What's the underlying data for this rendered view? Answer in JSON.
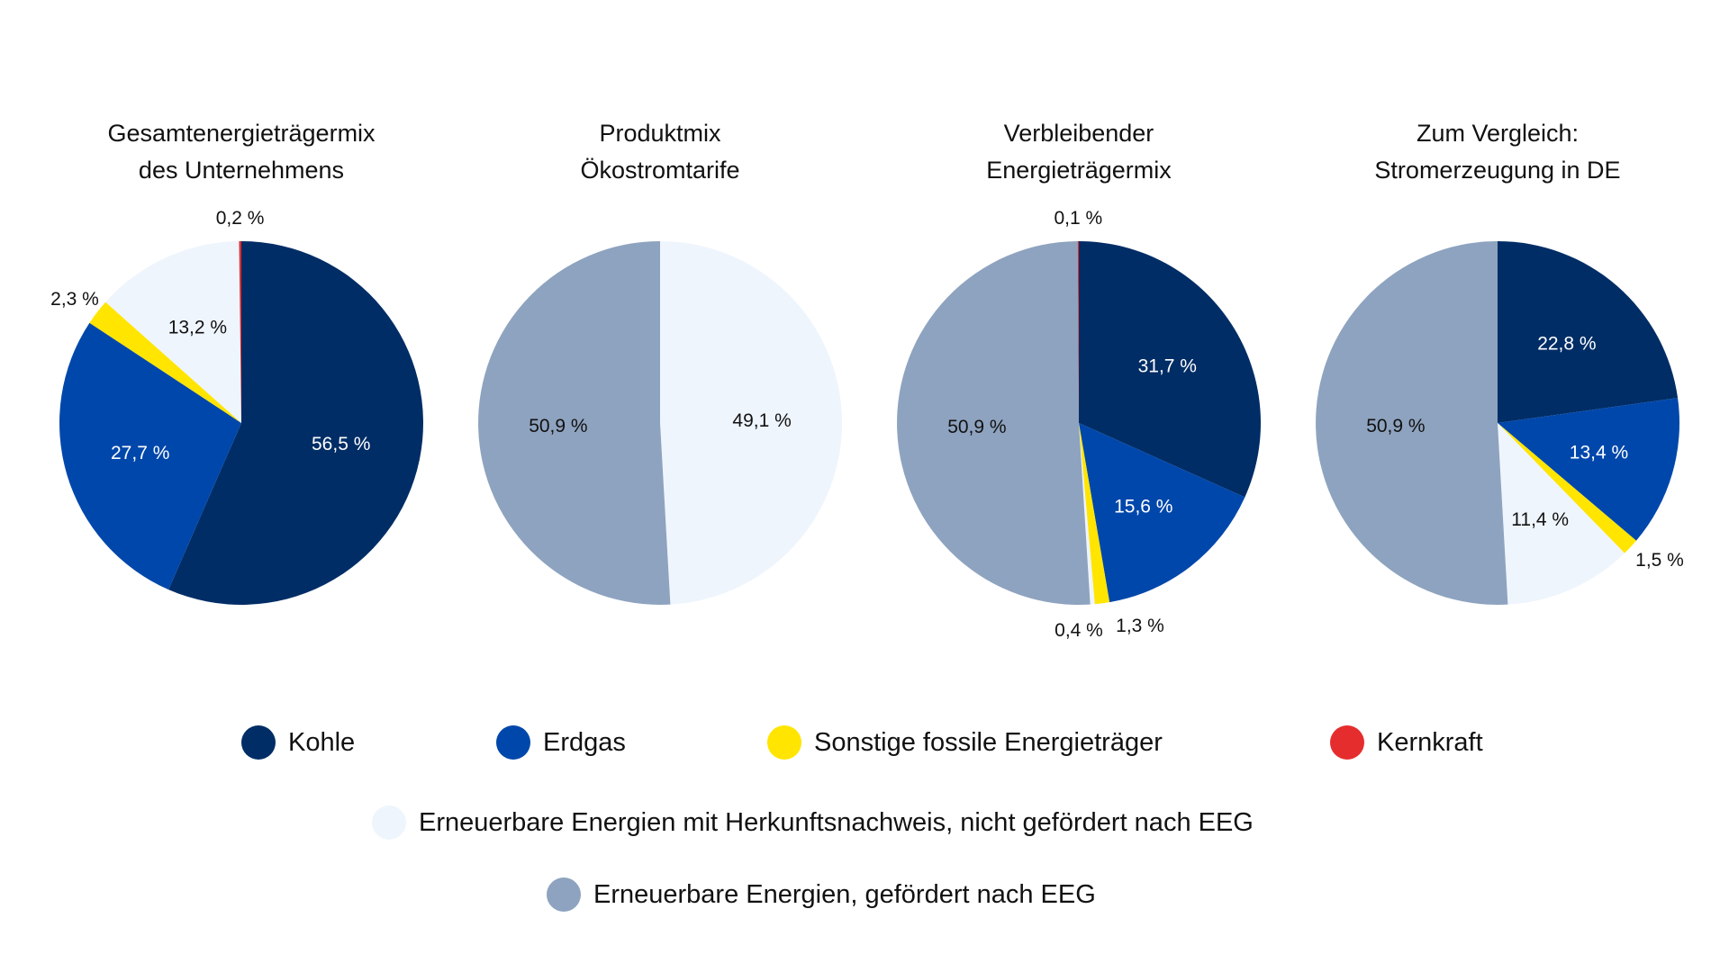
{
  "colors": {
    "Kohle": "#002D66",
    "Erdgas": "#0047AB",
    "Sonstige": "#FFE500",
    "Kernkraft": "#E52D2D",
    "Erneuerbar_HKN": "#EFF5FD",
    "Erneuerbar_EEG": "#8EA3BF"
  },
  "legend": {
    "kohle": "Kohle",
    "erdgas": "Erdgas",
    "sonstige": "Sonstige fossile Energieträger",
    "kernkraft": "Kernkraft",
    "erneuerbar_hkn": "Erneuerbare Energien mit Herkunftsnachweis, nicht gefördert nach EEG",
    "erneuerbar_eeg": "Erneuerbare Energien, gefördert nach EEG"
  },
  "chart_data": [
    {
      "type": "pie",
      "title": [
        "Gesamtenergieträgermix",
        "des Unternehmens"
      ],
      "slices": [
        {
          "category": "Kohle",
          "value": 56.5,
          "label": "56,5 %"
        },
        {
          "category": "Erdgas",
          "value": 27.7,
          "label": "27,7 %"
        },
        {
          "category": "Sonstige",
          "value": 2.3,
          "label": "2,3 %"
        },
        {
          "category": "Erneuerbar_HKN",
          "value": 13.2,
          "label": "13,2 %"
        },
        {
          "category": "Kernkraft",
          "value": 0.2,
          "label": "0,2 %"
        }
      ]
    },
    {
      "type": "pie",
      "title": [
        "Produktmix",
        "Ökostromtarife"
      ],
      "slices": [
        {
          "category": "Erneuerbar_HKN",
          "value": 49.1,
          "label": "49,1 %"
        },
        {
          "category": "Erneuerbar_EEG",
          "value": 50.9,
          "label": "50,9 %"
        }
      ]
    },
    {
      "type": "pie",
      "title": [
        "Verbleibender",
        "Energieträgermix"
      ],
      "slices": [
        {
          "category": "Kohle",
          "value": 31.7,
          "label": "31,7 %"
        },
        {
          "category": "Erdgas",
          "value": 15.6,
          "label": "15,6 %"
        },
        {
          "category": "Sonstige",
          "value": 1.3,
          "label": "1,3 %"
        },
        {
          "category": "Erneuerbar_HKN",
          "value": 0.4,
          "label": "0,4 %"
        },
        {
          "category": "Erneuerbar_EEG",
          "value": 50.9,
          "label": "50,9 %"
        },
        {
          "category": "Kernkraft",
          "value": 0.1,
          "label": "0,1 %"
        }
      ]
    },
    {
      "type": "pie",
      "title": [
        "Zum Vergleich:",
        "Stromerzeugung in DE"
      ],
      "slices": [
        {
          "category": "Kohle",
          "value": 22.8,
          "label": "22,8 %"
        },
        {
          "category": "Erdgas",
          "value": 13.4,
          "label": "13,4 %"
        },
        {
          "category": "Sonstige",
          "value": 1.5,
          "label": "1,5 %"
        },
        {
          "category": "Erneuerbar_HKN",
          "value": 11.4,
          "label": "11,4 %"
        },
        {
          "category": "Erneuerbar_EEG",
          "value": 50.9,
          "label": "50,9 %"
        }
      ]
    }
  ]
}
